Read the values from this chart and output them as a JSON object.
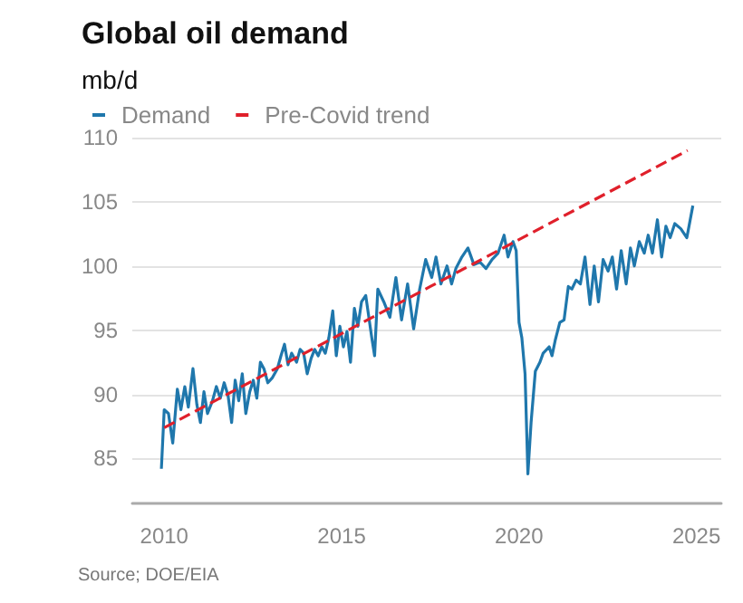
{
  "chart_data": {
    "type": "line",
    "title": "Global oil demand",
    "ylabel": "mb/d",
    "annotations": [
      "Source; DOE/EIA"
    ],
    "series": [
      {
        "name": "Demand",
        "color": "#1f77ac",
        "line_style": "solid",
        "x": [
          2009.92,
          2010.0,
          2010.12,
          2010.24,
          2010.37,
          2010.47,
          2010.58,
          2010.68,
          2010.81,
          2010.92,
          2011.02,
          2011.12,
          2011.22,
          2011.36,
          2011.47,
          2011.58,
          2011.69,
          2011.8,
          2011.9,
          2012.0,
          2012.1,
          2012.2,
          2012.3,
          2012.41,
          2012.51,
          2012.61,
          2012.71,
          2012.81,
          2012.92,
          2013.05,
          2013.19,
          2013.29,
          2013.39,
          2013.49,
          2013.59,
          2013.73,
          2013.83,
          2013.93,
          2014.03,
          2014.14,
          2014.24,
          2014.34,
          2014.44,
          2014.54,
          2014.64,
          2014.75,
          2014.85,
          2014.95,
          2015.05,
          2015.15,
          2015.25,
          2015.36,
          2015.46,
          2015.56,
          2015.68,
          2015.85,
          2015.93,
          2016.02,
          2016.19,
          2016.36,
          2016.53,
          2016.69,
          2016.86,
          2017.03,
          2017.2,
          2017.37,
          2017.54,
          2017.66,
          2017.8,
          2017.97,
          2018.1,
          2018.22,
          2018.39,
          2018.56,
          2018.73,
          2018.9,
          2019.07,
          2019.24,
          2019.41,
          2019.58,
          2019.69,
          2019.83,
          2019.92,
          2020.0,
          2020.08,
          2020.17,
          2020.25,
          2020.34,
          2020.46,
          2020.59,
          2020.68,
          2020.85,
          2020.93,
          2021.02,
          2021.15,
          2021.27,
          2021.39,
          2021.49,
          2021.61,
          2021.73,
          2021.86,
          2022.0,
          2022.12,
          2022.24,
          2022.37,
          2022.51,
          2022.63,
          2022.75,
          2022.88,
          2023.02,
          2023.14,
          2023.25,
          2023.39,
          2023.53,
          2023.64,
          2023.76,
          2023.9,
          2024.02,
          2024.14,
          2024.26,
          2024.39,
          2024.56,
          2024.73,
          2024.9
        ],
        "values": [
          84.2,
          88.8,
          88.5,
          86.2,
          90.4,
          88.8,
          90.6,
          89.0,
          92.0,
          89.2,
          87.8,
          90.2,
          88.5,
          89.5,
          90.6,
          89.7,
          90.9,
          89.9,
          87.8,
          91.1,
          89.5,
          91.6,
          88.5,
          90.2,
          91.1,
          89.7,
          92.5,
          92.0,
          90.9,
          91.3,
          92.0,
          93.0,
          93.9,
          92.3,
          93.2,
          92.5,
          93.5,
          93.2,
          91.6,
          92.8,
          93.5,
          93.0,
          93.7,
          93.2,
          94.4,
          96.5,
          93.0,
          95.3,
          93.7,
          94.9,
          92.5,
          96.7,
          95.3,
          97.2,
          97.7,
          94.4,
          93.0,
          98.2,
          97.2,
          96.0,
          99.1,
          95.8,
          98.6,
          95.1,
          98.2,
          100.5,
          99.1,
          100.7,
          98.6,
          100.0,
          98.6,
          99.8,
          100.7,
          101.4,
          100.1,
          100.3,
          99.8,
          100.5,
          101.0,
          102.4,
          100.7,
          101.9,
          101.2,
          95.6,
          94.4,
          91.6,
          83.8,
          87.8,
          91.8,
          92.5,
          93.2,
          93.7,
          93.0,
          94.2,
          95.6,
          95.8,
          98.4,
          98.2,
          98.9,
          98.6,
          100.7,
          97.0,
          100.0,
          97.2,
          100.5,
          99.6,
          100.7,
          98.2,
          101.2,
          98.6,
          101.4,
          100.0,
          101.9,
          101.0,
          102.4,
          101.0,
          103.6,
          100.7,
          103.1,
          102.2,
          103.3,
          102.9,
          102.2,
          104.7
        ]
      },
      {
        "name": "Pre-Covid trend",
        "color": "#e0202b",
        "line_style": "dashed",
        "x": [
          2010.0,
          2017.5,
          2024.75
        ],
        "values": [
          87.4,
          98.4,
          109.0
        ]
      }
    ],
    "xlim": [
      2009.1,
      2025.7
    ],
    "xticks": [
      2010,
      2015,
      2020,
      2025
    ],
    "ylim": [
      81.5,
      110
    ],
    "yticks": [
      85,
      90,
      95,
      100,
      105,
      110
    ],
    "grid": "y",
    "legend": "top left",
    "marker": "none"
  }
}
